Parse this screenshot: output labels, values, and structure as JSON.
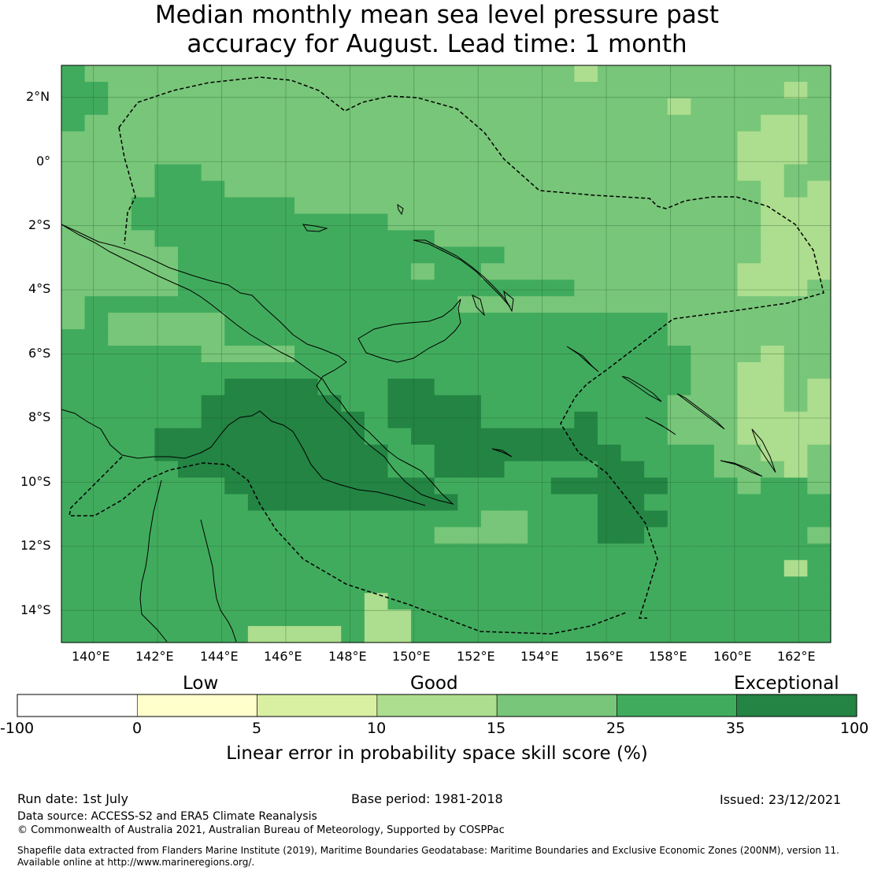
{
  "title": {
    "line1": "Median monthly mean sea level pressure past",
    "line2": "accuracy for August. Lead time: 1 month"
  },
  "map": {
    "lon_labels": [
      "140°E",
      "142°E",
      "144°E",
      "146°E",
      "148°E",
      "150°E",
      "152°E",
      "154°E",
      "156°E",
      "158°E",
      "160°E",
      "162°E"
    ],
    "lat_labels": [
      "2°N",
      "0°",
      "2°S",
      "4°S",
      "6°S",
      "8°S",
      "10°S",
      "12°S",
      "14°S"
    ],
    "lon_range": [
      139,
      163
    ],
    "lat_range": [
      -15,
      3
    ],
    "cell_size_deg": 0.8333,
    "grid": [
      "abbbbbbbbbbbbbbbbbbbbbcbbbbbbbbbb",
      "aabbbbbbbbbbbbbbbbbbbbbbbbbbbbbcb",
      "aabbbbbbbbbbbbbbbbbbbbbbbbcbbbbbb",
      "abbbbbbbbbbbbbbbbbbbbbbbbbbbbbccb",
      "bbbbbbbbbbbbbbbbbbbbbbbbbbbbbcccb",
      "bbbbbbbbbbbbbbbbbbbbbbbbbbbbbcccb",
      "bbbbaabbbbbbbbbbbbbbbbbbbbbbbccbb",
      "bbbbaaabbbbbbbbbbbbbbbbbbbbbbbcbc",
      "bbbaaaaaaabbbbbbbbbbbbbbbbbbbbccc",
      "bbbaaaaaaaaaaabbbbbbbbbbbbbbbbccc",
      "bbbbaaaaaaaaaaaabbbbbbbbbbbbbbccc",
      "bbbbbaaaaaaaaaaaaaabbbbbbbbbbbccc",
      "bbbbbaaaaaaaaaabaabbbbbbbbbbbcccc",
      "bbbbbaaaaaaaaaaaaaaaaabbbbbbbcccb",
      "baaaaaaaaaaaaaaaabbbbbbbbbbbbbbbb",
      "babbbbbaaaaaaaaaaaaaaaaaaabbbbbbb",
      "aabbbbbaaaaaaaaaaaaaaaaaaabbbbbbb",
      "aaaaaabbbbaaaaaaaaaaaaaaaaabbbcbb",
      "aaaaaaaaaaaaaaaaaaaaaaaaaaabbccbb",
      "aaaaaaaddddaaaddaaaaaaaaaaabbccbc",
      "aaaaaaddddddaaddddaaaaaaaabbbccbc",
      "aaaaaadddddddaddddaaaadaaabbbcccc",
      "aaaadddddddddaaddddddddaaabbbcccc",
      "aaaaddddddddddaaddddddddaaaabbccb",
      "aaaaadddddddddaadddaaaaddaaabbbcb",
      "aaaaaaadddddddddaaaaadddddaaabaab",
      "aaaaaaaadddddddddaaaaaaddaaaaaaaa",
      "aaaaaaaaaaaaaaaaaabbaaadddaaaaaaa",
      "aaaaaaaaaaaaaaaabbbbaaaddaaaaaaab",
      "aaaaaaaaaaaaaaaaaaaaaaaaaaaaaaaaa",
      "aaaaaaaaaaaaaaaaaaaaaaaaaaaaaaaca",
      "aaaaaaaaaaaaaaaaaaaaaaaaaaaaaaaaa",
      "aaaaaaaaaaaaacaaaaaaaaaaaaaaaaaaa",
      "aaaaaaaaaaaaaccaaaaaaaaaaaaaaaaaa",
      "aaaaaaaaccccaccaaaaaaaaaaaaaaaaaa"
    ]
  },
  "colorbar": {
    "headings": [
      "Low",
      "Good",
      "Exceptional"
    ],
    "ticks": [
      "-100",
      "0",
      "5",
      "10",
      "15",
      "25",
      "35",
      "100"
    ],
    "colors": [
      "#ffffff",
      "#ffffcc",
      "#d9f0a3",
      "#addd8e",
      "#78c679",
      "#41ab5d",
      "#238443"
    ],
    "label": "Linear error in probability space skill score (%)"
  },
  "footer": {
    "run_date": "Run date: 1st July",
    "base_period": "Base period: 1981-2018",
    "issued": "Issued: 23/12/2021",
    "data_source": "Data source: ACCESS-S2 and ERA5 Climate Reanalysis",
    "copyright": "© Commonwealth of Australia 2021, Australian Bureau of Meteorology, Supported by COSPPac",
    "shapefile_line1": "Shapefile data extracted from Flanders Marine Institute (2019), Maritime Boundaries Geodatabase: Maritime Boundaries and Exclusive Economic Zones (200NM), version 11.",
    "shapefile_line2": "Available online at http://www.marineregions.org/."
  },
  "style": {
    "cell_colors": {
      "a": "#41ab5d",
      "b": "#78c679",
      "c": "#addd8e",
      "d": "#238443"
    },
    "coast_color": "#000000",
    "gridline_color": "#1a5c2a"
  }
}
